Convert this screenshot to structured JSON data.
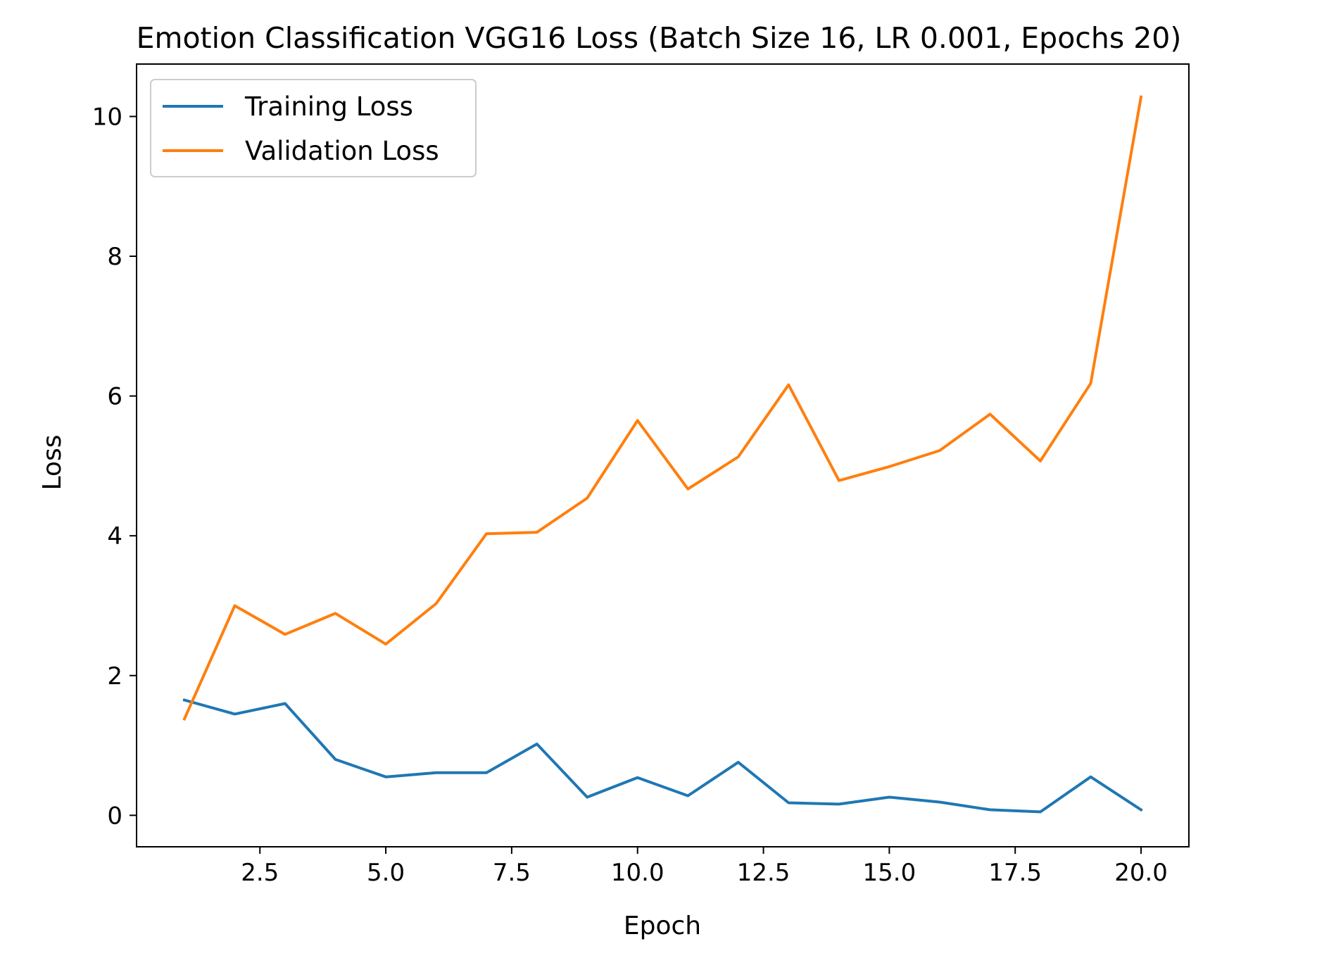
{
  "chart_data": {
    "type": "line",
    "title": "Emotion Classification VGG16 Loss (Batch Size 16, LR 0.001, Epochs 20)",
    "xlabel": "Epoch",
    "ylabel": "Loss",
    "xlim": [
      0.05,
      20.95
    ],
    "ylim": [
      -0.45,
      10.75
    ],
    "x_ticks": [
      2.5,
      5.0,
      7.5,
      10.0,
      12.5,
      15.0,
      17.5,
      20.0
    ],
    "x_tick_labels": [
      "2.5",
      "5.0",
      "7.5",
      "10.0",
      "12.5",
      "15.0",
      "17.5",
      "20.0"
    ],
    "y_ticks": [
      0,
      2,
      4,
      6,
      8,
      10
    ],
    "y_tick_labels": [
      "0",
      "2",
      "4",
      "6",
      "8",
      "10"
    ],
    "grid": false,
    "legend_position": "top-left",
    "x": [
      1,
      2,
      3,
      4,
      5,
      6,
      7,
      8,
      9,
      10,
      11,
      12,
      13,
      14,
      15,
      16,
      17,
      18,
      19,
      20
    ],
    "series": [
      {
        "name": "Training Loss",
        "color": "#1f77b4",
        "values": [
          1.65,
          1.45,
          1.6,
          0.8,
          0.55,
          0.61,
          0.61,
          1.02,
          0.26,
          0.54,
          0.28,
          0.76,
          0.18,
          0.16,
          0.26,
          0.19,
          0.08,
          0.05,
          0.55,
          0.08
        ]
      },
      {
        "name": "Validation Loss",
        "color": "#ff7f0e",
        "values": [
          1.38,
          3.0,
          2.59,
          2.89,
          2.45,
          3.03,
          4.03,
          4.05,
          4.54,
          5.65,
          4.67,
          5.13,
          6.16,
          4.79,
          4.99,
          5.22,
          5.74,
          5.07,
          6.18,
          10.28
        ]
      }
    ]
  }
}
